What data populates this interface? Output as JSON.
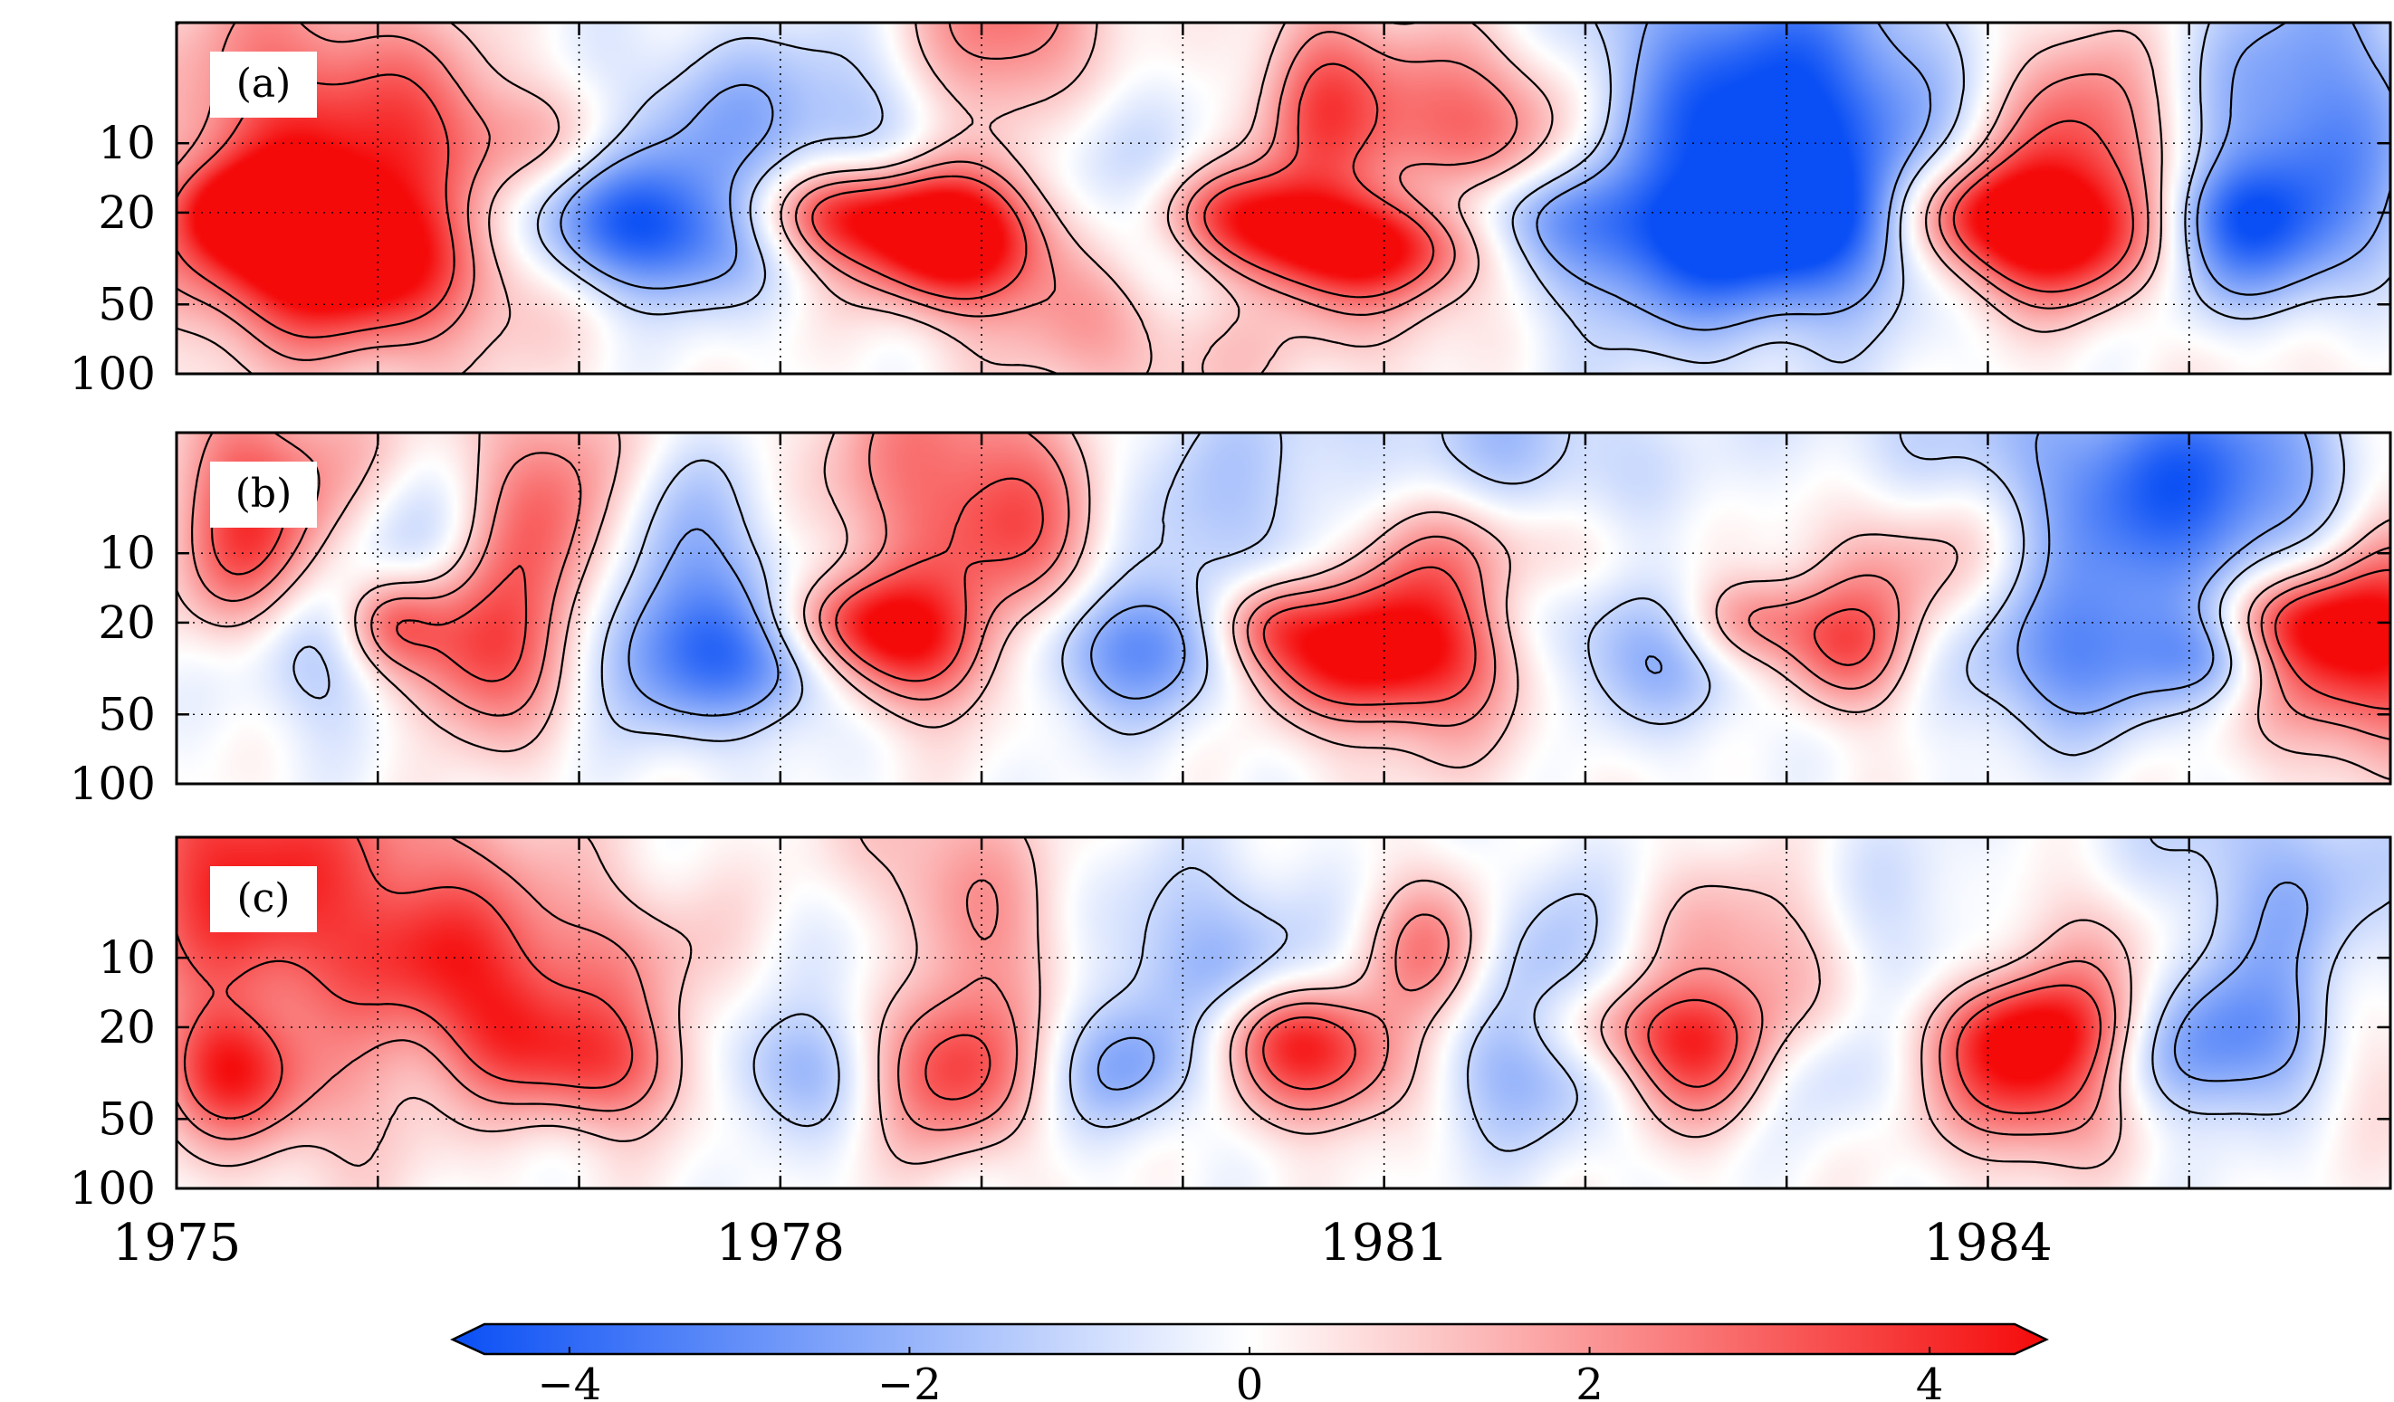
{
  "chart_data": {
    "type": "heatmap",
    "title": "",
    "xlabel": "",
    "ylabel": "",
    "x_range": [
      1975,
      1986
    ],
    "x_tick_labels": [
      "1975",
      "1978",
      "1981",
      "1984"
    ],
    "x_tick_values": [
      1975,
      1978,
      1981,
      1984
    ],
    "y_scale": "log",
    "y_range": [
      100,
      3
    ],
    "y_tick_labels": [
      "10",
      "20",
      "50",
      "100"
    ],
    "y_tick_values": [
      10,
      20,
      50,
      100
    ],
    "colorbar": {
      "min": -4.5,
      "max": 4.5,
      "tick_labels": [
        "−4",
        "−2",
        "0",
        "2",
        "4"
      ],
      "tick_values": [
        -4,
        -2,
        0,
        2,
        4
      ],
      "colors": {
        "low": "#0a4ff5",
        "mid": "#ffffff",
        "high": "#f50a0a"
      },
      "extend": "both"
    },
    "contour_levels": [
      -2,
      -1,
      1,
      2,
      3
    ],
    "panels": [
      {
        "label": "(a)",
        "blobs": [
          {
            "t": 1975.75,
            "p": 27,
            "v": 4.0,
            "st": 0.45,
            "sp": 0.22
          },
          {
            "t": 1975.35,
            "p": 20,
            "v": 3.5,
            "st": 0.2,
            "sp": 0.12
          },
          {
            "t": 1976.0,
            "p": 32,
            "v": 2.8,
            "st": 0.6,
            "sp": 0.35
          },
          {
            "t": 1975.55,
            "p": 8,
            "v": 3.0,
            "st": 0.45,
            "sp": 0.5
          },
          {
            "t": 1976.3,
            "p": 9,
            "v": 2.0,
            "st": 0.3,
            "sp": 0.3
          },
          {
            "t": 1976.95,
            "p": 10,
            "v": 1.4,
            "st": 0.3,
            "sp": 0.2
          },
          {
            "t": 1976.2,
            "p": 22,
            "v": -1.5,
            "st": 0.3,
            "sp": 0.2
          },
          {
            "t": 1977.05,
            "p": 20,
            "v": -2.5,
            "st": 0.45,
            "sp": 0.2
          },
          {
            "t": 1977.45,
            "p": 28,
            "v": -2.5,
            "st": 0.35,
            "sp": 0.2
          },
          {
            "t": 1977.6,
            "p": 9,
            "v": -1.8,
            "st": 0.5,
            "sp": 0.3
          },
          {
            "t": 1978.25,
            "p": 20,
            "v": 3.5,
            "st": 0.3,
            "sp": 0.15
          },
          {
            "t": 1978.9,
            "p": 28,
            "v": 3.8,
            "st": 0.3,
            "sp": 0.2
          },
          {
            "t": 1978.7,
            "p": 23,
            "v": 2.5,
            "st": 0.35,
            "sp": 0.2
          },
          {
            "t": 1979.15,
            "p": 4,
            "v": 3.2,
            "st": 0.35,
            "sp": 0.45
          },
          {
            "t": 1979.5,
            "p": 40,
            "v": 1.2,
            "st": 0.3,
            "sp": 0.3
          },
          {
            "t": 1978.4,
            "p": 8,
            "v": -1.2,
            "st": 0.4,
            "sp": 0.3
          },
          {
            "t": 1979.4,
            "p": 10,
            "v": -2.0,
            "st": 0.35,
            "sp": 0.3
          },
          {
            "t": 1979.9,
            "p": 26,
            "v": -2.0,
            "st": 0.35,
            "sp": 0.2
          },
          {
            "t": 1979.9,
            "p": 80,
            "v": 1.0,
            "st": 0.6,
            "sp": 0.25
          },
          {
            "t": 1980.25,
            "p": 20,
            "v": 3.5,
            "st": 0.35,
            "sp": 0.15
          },
          {
            "t": 1980.8,
            "p": 27,
            "v": 4.5,
            "st": 0.45,
            "sp": 0.15
          },
          {
            "t": 1981.3,
            "p": 8,
            "v": 3.5,
            "st": 0.4,
            "sp": 0.3
          },
          {
            "t": 1980.65,
            "p": 7,
            "v": 2.5,
            "st": 0.2,
            "sp": 0.35
          },
          {
            "t": 1981.9,
            "p": 9,
            "v": 1.4,
            "st": 0.25,
            "sp": 0.3
          },
          {
            "t": 1981.1,
            "p": 40,
            "v": 1.5,
            "st": 0.4,
            "sp": 0.25
          },
          {
            "t": 1981.5,
            "p": 20,
            "v": -1.8,
            "st": 0.6,
            "sp": 0.15
          },
          {
            "t": 1982.5,
            "p": 10,
            "v": -2.5,
            "st": 0.7,
            "sp": 0.6
          },
          {
            "t": 1983.1,
            "p": 8,
            "v": -3.2,
            "st": 0.5,
            "sp": 0.45
          },
          {
            "t": 1982.8,
            "p": 29,
            "v": -2.4,
            "st": 0.7,
            "sp": 0.2
          },
          {
            "t": 1983.55,
            "p": 20,
            "v": -1.6,
            "st": 0.35,
            "sp": 0.15
          },
          {
            "t": 1983.8,
            "p": 20,
            "v": 3.0,
            "st": 0.3,
            "sp": 0.15
          },
          {
            "t": 1984.3,
            "p": 27,
            "v": 3.8,
            "st": 0.45,
            "sp": 0.2
          },
          {
            "t": 1984.5,
            "p": 10,
            "v": 3.2,
            "st": 0.35,
            "sp": 0.35
          },
          {
            "t": 1984.2,
            "p": 20,
            "v": 1.5,
            "st": 0.3,
            "sp": 0.2
          },
          {
            "t": 1985.3,
            "p": 28,
            "v": -2.5,
            "st": 0.4,
            "sp": 0.25
          },
          {
            "t": 1985.6,
            "p": 8,
            "v": -3.0,
            "st": 0.45,
            "sp": 0.5
          },
          {
            "t": 1985.2,
            "p": 20,
            "v": -1.2,
            "st": 0.25,
            "sp": 0.15
          },
          {
            "t": 1985.6,
            "p": 70,
            "v": 0.8,
            "st": 0.5,
            "sp": 0.3
          }
        ]
      },
      {
        "label": "(b)",
        "blobs": [
          {
            "t": 1975.3,
            "p": 8,
            "v": 2.8,
            "st": 0.25,
            "sp": 0.4
          },
          {
            "t": 1975.7,
            "p": 6,
            "v": 1.8,
            "st": 0.35,
            "sp": 0.4
          },
          {
            "t": 1975.7,
            "p": 27,
            "v": -2.0,
            "st": 0.4,
            "sp": 0.25
          },
          {
            "t": 1976.05,
            "p": 20,
            "v": 2.5,
            "st": 0.18,
            "sp": 0.15
          },
          {
            "t": 1976.45,
            "p": 27,
            "v": 3.5,
            "st": 0.3,
            "sp": 0.25
          },
          {
            "t": 1976.85,
            "p": 8,
            "v": 3.0,
            "st": 0.3,
            "sp": 0.45
          },
          {
            "t": 1976.1,
            "p": 9,
            "v": -1.8,
            "st": 0.3,
            "sp": 0.25
          },
          {
            "t": 1977.5,
            "p": 27,
            "v": -3.0,
            "st": 0.45,
            "sp": 0.25
          },
          {
            "t": 1977.55,
            "p": 9,
            "v": -1.8,
            "st": 0.35,
            "sp": 0.3
          },
          {
            "t": 1978.3,
            "p": 20,
            "v": 3.0,
            "st": 0.3,
            "sp": 0.15
          },
          {
            "t": 1978.65,
            "p": 27,
            "v": 3.5,
            "st": 0.35,
            "sp": 0.2
          },
          {
            "t": 1978.9,
            "p": 5,
            "v": 3.0,
            "st": 0.5,
            "sp": 0.45
          },
          {
            "t": 1979.3,
            "p": 10,
            "v": 1.8,
            "st": 0.3,
            "sp": 0.3
          },
          {
            "t": 1978.1,
            "p": 28,
            "v": -2.0,
            "st": 0.3,
            "sp": 0.2
          },
          {
            "t": 1979.8,
            "p": 26,
            "v": -2.8,
            "st": 0.55,
            "sp": 0.2
          },
          {
            "t": 1979.9,
            "p": 8,
            "v": -1.5,
            "st": 0.6,
            "sp": 0.5
          },
          {
            "t": 1980.9,
            "p": 27,
            "v": 4.8,
            "st": 0.5,
            "sp": 0.2
          },
          {
            "t": 1980.4,
            "p": 20,
            "v": 2.8,
            "st": 0.2,
            "sp": 0.15
          },
          {
            "t": 1981.15,
            "p": 10,
            "v": 2.8,
            "st": 0.3,
            "sp": 0.3
          },
          {
            "t": 1981.8,
            "p": 10,
            "v": 2.0,
            "st": 0.4,
            "sp": 0.2
          },
          {
            "t": 1981.3,
            "p": 40,
            "v": 1.2,
            "st": 0.5,
            "sp": 0.3
          },
          {
            "t": 1981.5,
            "p": 5,
            "v": -2.0,
            "st": 0.6,
            "sp": 0.4
          },
          {
            "t": 1982.3,
            "p": 25,
            "v": -2.3,
            "st": 0.6,
            "sp": 0.25
          },
          {
            "t": 1982.8,
            "p": 20,
            "v": 3.0,
            "st": 0.25,
            "sp": 0.15
          },
          {
            "t": 1983.3,
            "p": 27,
            "v": 3.0,
            "st": 0.25,
            "sp": 0.2
          },
          {
            "t": 1983.7,
            "p": 10,
            "v": 3.0,
            "st": 0.5,
            "sp": 0.3
          },
          {
            "t": 1983.6,
            "p": 5,
            "v": -1.5,
            "st": 0.5,
            "sp": 0.4
          },
          {
            "t": 1984.4,
            "p": 28,
            "v": -2.4,
            "st": 0.45,
            "sp": 0.25
          },
          {
            "t": 1984.8,
            "p": 8,
            "v": -2.8,
            "st": 0.6,
            "sp": 0.4
          },
          {
            "t": 1985.15,
            "p": 4,
            "v": -2.0,
            "st": 0.6,
            "sp": 0.3
          },
          {
            "t": 1985.2,
            "p": 28,
            "v": -2.0,
            "st": 0.25,
            "sp": 0.15
          },
          {
            "t": 1985.85,
            "p": 27,
            "v": 4.2,
            "st": 0.45,
            "sp": 0.3
          },
          {
            "t": 1985.5,
            "p": 20,
            "v": 2.5,
            "st": 0.3,
            "sp": 0.15
          },
          {
            "t": 1986.0,
            "p": 8,
            "v": 1.2,
            "st": 0.25,
            "sp": 0.4
          }
        ]
      },
      {
        "label": "(c)",
        "blobs": [
          {
            "t": 1975.2,
            "p": 4,
            "v": 3.0,
            "st": 0.4,
            "sp": 0.45
          },
          {
            "t": 1976.0,
            "p": 5,
            "v": 2.5,
            "st": 0.6,
            "sp": 0.45
          },
          {
            "t": 1975.25,
            "p": 30,
            "v": 3.5,
            "st": 0.25,
            "sp": 0.2
          },
          {
            "t": 1975.7,
            "p": 32,
            "v": 1.5,
            "st": 0.4,
            "sp": 0.35
          },
          {
            "t": 1975.5,
            "p": 23,
            "v": -1.2,
            "st": 0.3,
            "sp": 0.2
          },
          {
            "t": 1976.25,
            "p": 10,
            "v": 1.2,
            "st": 0.3,
            "sp": 0.2
          },
          {
            "t": 1976.6,
            "p": 20,
            "v": 2.0,
            "st": 0.25,
            "sp": 0.2
          },
          {
            "t": 1977.1,
            "p": 30,
            "v": 3.0,
            "st": 0.35,
            "sp": 0.2
          },
          {
            "t": 1977.0,
            "p": 10,
            "v": 1.6,
            "st": 0.5,
            "sp": 0.25
          },
          {
            "t": 1978.05,
            "p": 30,
            "v": -2.0,
            "st": 0.3,
            "sp": 0.2
          },
          {
            "t": 1978.55,
            "p": 10,
            "v": -1.4,
            "st": 0.3,
            "sp": 0.25
          },
          {
            "t": 1978.85,
            "p": 30,
            "v": 3.5,
            "st": 0.3,
            "sp": 0.25
          },
          {
            "t": 1978.8,
            "p": 5,
            "v": 2.0,
            "st": 0.35,
            "sp": 0.4
          },
          {
            "t": 1979.3,
            "p": 10,
            "v": 1.2,
            "st": 0.4,
            "sp": 0.25
          },
          {
            "t": 1979.75,
            "p": 30,
            "v": -2.0,
            "st": 0.35,
            "sp": 0.2
          },
          {
            "t": 1980.0,
            "p": 10,
            "v": -2.0,
            "st": 0.5,
            "sp": 0.3
          },
          {
            "t": 1980.5,
            "p": 20,
            "v": 2.0,
            "st": 0.3,
            "sp": 0.15
          },
          {
            "t": 1980.75,
            "p": 30,
            "v": 3.8,
            "st": 0.4,
            "sp": 0.2
          },
          {
            "t": 1981.25,
            "p": 10,
            "v": 2.8,
            "st": 0.25,
            "sp": 0.25
          },
          {
            "t": 1981.6,
            "p": 28,
            "v": -2.5,
            "st": 0.55,
            "sp": 0.25
          },
          {
            "t": 1981.8,
            "p": 9,
            "v": -1.4,
            "st": 0.3,
            "sp": 0.3
          },
          {
            "t": 1982.25,
            "p": 20,
            "v": 2.2,
            "st": 0.4,
            "sp": 0.15
          },
          {
            "t": 1982.6,
            "p": 30,
            "v": 3.5,
            "st": 0.35,
            "sp": 0.2
          },
          {
            "t": 1982.9,
            "p": 10,
            "v": 2.5,
            "st": 0.4,
            "sp": 0.3
          },
          {
            "t": 1983.0,
            "p": 30,
            "v": -2.0,
            "st": 0.3,
            "sp": 0.2
          },
          {
            "t": 1983.5,
            "p": 9,
            "v": -1.6,
            "st": 0.5,
            "sp": 0.35
          },
          {
            "t": 1984.25,
            "p": 31,
            "v": 4.6,
            "st": 0.35,
            "sp": 0.25
          },
          {
            "t": 1984.2,
            "p": 20,
            "v": 1.8,
            "st": 0.4,
            "sp": 0.15
          },
          {
            "t": 1984.6,
            "p": 9,
            "v": 2.2,
            "st": 0.5,
            "sp": 0.3
          },
          {
            "t": 1984.9,
            "p": 28,
            "v": -1.8,
            "st": 0.4,
            "sp": 0.2
          },
          {
            "t": 1985.3,
            "p": 7,
            "v": -2.4,
            "st": 0.6,
            "sp": 0.45
          },
          {
            "t": 1985.3,
            "p": 20,
            "v": -1.5,
            "st": 0.3,
            "sp": 0.2
          },
          {
            "t": 1985.9,
            "p": 22,
            "v": 1.2,
            "st": 0.3,
            "sp": 0.3
          }
        ]
      }
    ]
  }
}
